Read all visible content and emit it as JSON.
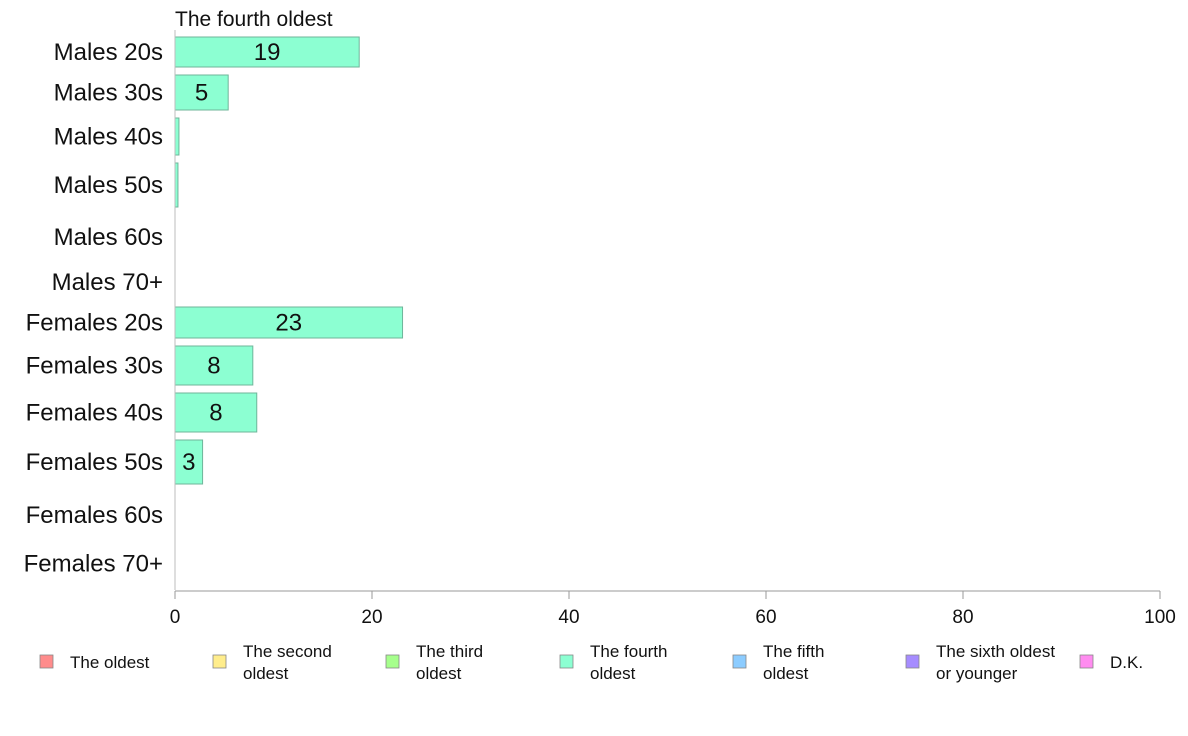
{
  "chart_data": {
    "type": "bar",
    "orientation": "horizontal",
    "title": "The fourth oldest",
    "categories": [
      "Males 20s",
      "Males 30s",
      "Males 40s",
      "Males 50s",
      "Males 60s",
      "Males 70+",
      "Females 20s",
      "Females 30s",
      "Females 40s",
      "Females 50s",
      "Females 60s",
      "Females 70+"
    ],
    "values": [
      18.7,
      5.4,
      0.4,
      0.3,
      0,
      0,
      23.1,
      7.9,
      8.3,
      2.8,
      0,
      0
    ],
    "data_labels": [
      "19",
      "5",
      "",
      "",
      "",
      "",
      "23",
      "8",
      "8",
      "3",
      "",
      ""
    ],
    "xlim": [
      0,
      100
    ],
    "xticks": [
      "0",
      "20",
      "40",
      "60",
      "80",
      "100"
    ],
    "bar_color": "#8cffd2",
    "grid": false,
    "legend_position": "bottom",
    "legend": [
      {
        "line1": "The oldest",
        "line2": "",
        "color": "#ff8c8c"
      },
      {
        "line1": "The second",
        "line2": "oldest",
        "color": "#ffed8c"
      },
      {
        "line1": "The third",
        "line2": "oldest",
        "color": "#a6ff8c"
      },
      {
        "line1": "The fourth",
        "line2": "oldest",
        "color": "#8cffd2"
      },
      {
        "line1": "The fifth",
        "line2": "oldest",
        "color": "#8cccff"
      },
      {
        "line1": "The sixth oldest",
        "line2": "or younger",
        "color": "#a68cff"
      },
      {
        "line1": "D.K.",
        "line2": "",
        "color": "#ff8cf0"
      }
    ]
  }
}
